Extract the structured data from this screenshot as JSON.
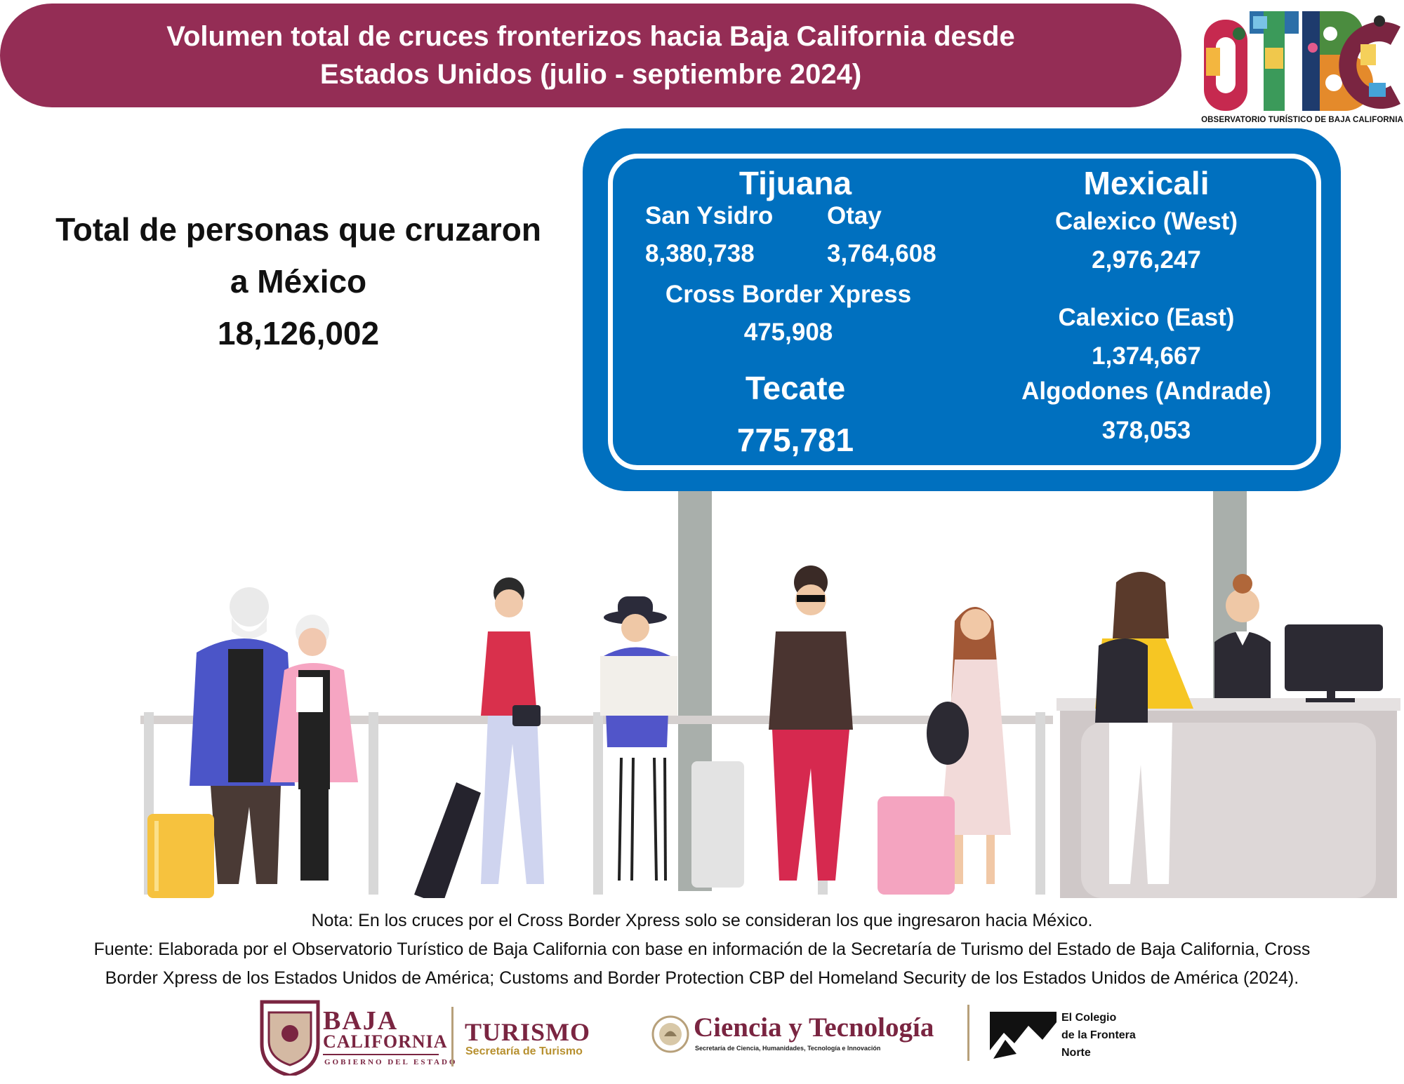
{
  "header": {
    "title": "Volumen total de cruces fronterizos hacia Baja California desde\nEstados Unidos (julio - septiembre 2024)"
  },
  "otbc_logo": {
    "letters": "OTBC",
    "caption": "OBSERVATORIO TURÍSTICO DE BAJA CALIFORNIA"
  },
  "total": {
    "label": "Total de personas que cruzaron\na México",
    "value": "18,126,002"
  },
  "sign": {
    "tijuana": {
      "city": "Tijuana",
      "ports": [
        {
          "name": "San Ysidro",
          "value": "8,380,738"
        },
        {
          "name": "Otay",
          "value": "3,764,608"
        },
        {
          "name": "Cross Border Xpress",
          "value": "475,908"
        }
      ]
    },
    "tecate": {
      "city": "Tecate",
      "value": "775,781"
    },
    "mexicali": {
      "city": "Mexicali",
      "ports": [
        {
          "name": "Calexico (West)",
          "value": "2,976,247"
        },
        {
          "name": "Calexico (East)",
          "value": "1,374,667"
        },
        {
          "name": "Algodones (Andrade)",
          "value": "378,053"
        }
      ]
    }
  },
  "notes": {
    "nota": "Nota: En los cruces por el Cross Border Xpress solo se consideran los que ingresaron hacia México.",
    "fuente_line1": "Fuente: Elaborada por el Observatorio Turístico de Baja California con base en información de la Secretaría de Turismo del Estado de Baja California, Cross",
    "fuente_line2": "Border Xpress de los Estados Unidos de América; Customs and Border Protection CBP del Homeland Security de los Estados Unidos de América (2024)."
  },
  "logos": {
    "baja": {
      "line1": "BAJA",
      "line2": "CALIFORNIA",
      "line3": "GOBIERNO DEL ESTADO"
    },
    "turismo": {
      "title": "TURISMO",
      "subtitle": "Secretaría de Turismo"
    },
    "ciencia": {
      "title": "Ciencia y Tecnología",
      "subtitle": "Secretaría de Ciencia, Humanidades, Tecnología e Innovación"
    },
    "colef": {
      "line1": "El Colegio",
      "line2": "de la Frontera",
      "line3": "Norte"
    }
  },
  "colors": {
    "banner": "#942d55",
    "sign_blue": "#0070bf",
    "pole_gray": "#a9afab",
    "brand_maroon": "#7a2541"
  }
}
